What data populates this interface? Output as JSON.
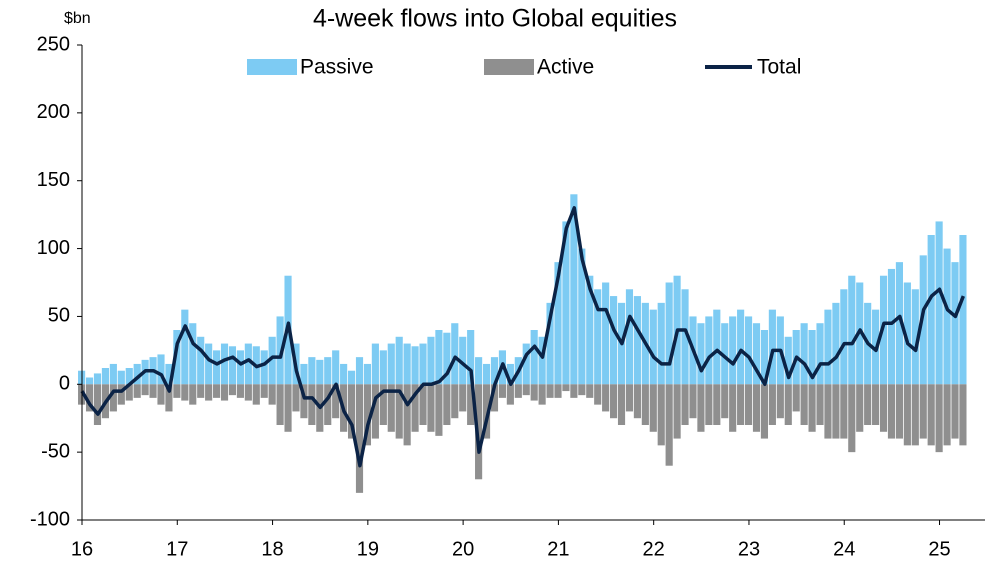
{
  "chart_data": {
    "type": "bar",
    "title": "4-week flows into Global equities",
    "y_axis_label": "$bn",
    "categories": [
      "16",
      null,
      null,
      null,
      null,
      null,
      null,
      null,
      null,
      null,
      null,
      null,
      "17",
      null,
      null,
      null,
      null,
      null,
      null,
      null,
      null,
      null,
      null,
      null,
      "18",
      null,
      null,
      null,
      null,
      null,
      null,
      null,
      null,
      null,
      null,
      null,
      "19",
      null,
      null,
      null,
      null,
      null,
      null,
      null,
      null,
      null,
      null,
      null,
      "20",
      null,
      null,
      null,
      null,
      null,
      null,
      null,
      null,
      null,
      null,
      null,
      "21",
      null,
      null,
      null,
      null,
      null,
      null,
      null,
      null,
      null,
      null,
      null,
      "22",
      null,
      null,
      null,
      null,
      null,
      null,
      null,
      null,
      null,
      null,
      null,
      "23",
      null,
      null,
      null,
      null,
      null,
      null,
      null,
      null,
      null,
      null,
      null,
      "24",
      null,
      null,
      null,
      null,
      null,
      null,
      null,
      null,
      null,
      null,
      null,
      "25",
      null,
      null,
      null
    ],
    "series": [
      {
        "name": "Passive",
        "color": "#7dcbf3",
        "kind": "bar",
        "values": [
          10,
          5,
          8,
          12,
          15,
          10,
          12,
          15,
          18,
          20,
          22,
          15,
          40,
          55,
          45,
          35,
          30,
          25,
          30,
          28,
          25,
          30,
          28,
          25,
          35,
          50,
          80,
          30,
          15,
          20,
          18,
          20,
          25,
          15,
          10,
          20,
          15,
          30,
          25,
          30,
          35,
          30,
          28,
          30,
          35,
          40,
          38,
          45,
          35,
          40,
          20,
          15,
          20,
          25,
          15,
          20,
          30,
          40,
          35,
          60,
          90,
          120,
          140,
          100,
          80,
          70,
          75,
          65,
          60,
          70,
          65,
          60,
          55,
          60,
          75,
          80,
          70,
          50,
          45,
          50,
          55,
          45,
          50,
          55,
          50,
          45,
          40,
          55,
          50,
          35,
          40,
          45,
          40,
          45,
          55,
          60,
          70,
          80,
          75,
          60,
          55,
          80,
          85,
          90,
          75,
          70,
          95,
          110,
          120,
          100,
          90,
          110
        ]
      },
      {
        "name": "Active",
        "color": "#8f8f8f",
        "kind": "bar",
        "values": [
          -15,
          -20,
          -30,
          -25,
          -20,
          -15,
          -12,
          -10,
          -8,
          -10,
          -15,
          -20,
          -10,
          -12,
          -15,
          -10,
          -12,
          -10,
          -12,
          -8,
          -10,
          -12,
          -15,
          -10,
          -15,
          -30,
          -35,
          -20,
          -25,
          -30,
          -35,
          -30,
          -25,
          -35,
          -40,
          -80,
          -45,
          -40,
          -30,
          -35,
          -40,
          -45,
          -35,
          -30,
          -35,
          -38,
          -30,
          -25,
          -20,
          -30,
          -70,
          -40,
          -20,
          -10,
          -15,
          -10,
          -8,
          -12,
          -15,
          -10,
          -10,
          -5,
          -10,
          -8,
          -10,
          -15,
          -20,
          -25,
          -30,
          -20,
          -25,
          -30,
          -35,
          -45,
          -60,
          -40,
          -30,
          -25,
          -35,
          -30,
          -30,
          -25,
          -35,
          -30,
          -30,
          -35,
          -40,
          -30,
          -25,
          -30,
          -20,
          -30,
          -35,
          -30,
          -40,
          -40,
          -40,
          -50,
          -35,
          -30,
          -30,
          -35,
          -40,
          -40,
          -45,
          -45,
          -40,
          -45,
          -50,
          -45,
          -40,
          -45
        ]
      },
      {
        "name": "Total",
        "color": "#0b2346",
        "kind": "line",
        "values": [
          -5,
          -15,
          -22,
          -13,
          -5,
          -5,
          0,
          5,
          10,
          10,
          7,
          -5,
          30,
          43,
          30,
          25,
          18,
          15,
          18,
          20,
          15,
          18,
          13,
          15,
          20,
          20,
          45,
          10,
          -10,
          -10,
          -17,
          -10,
          0,
          -20,
          -30,
          -60,
          -30,
          -10,
          -5,
          -5,
          -5,
          -15,
          -7,
          0,
          0,
          2,
          8,
          20,
          15,
          10,
          -50,
          -25,
          0,
          15,
          0,
          10,
          22,
          28,
          20,
          50,
          80,
          115,
          130,
          92,
          70,
          55,
          55,
          40,
          30,
          50,
          40,
          30,
          20,
          15,
          15,
          40,
          40,
          25,
          10,
          20,
          25,
          20,
          15,
          25,
          20,
          10,
          0,
          25,
          25,
          5,
          20,
          15,
          5,
          15,
          15,
          20,
          30,
          30,
          40,
          30,
          25,
          45,
          45,
          50,
          30,
          25,
          55,
          65,
          70,
          55,
          50,
          65
        ]
      }
    ],
    "ylim": [
      -100,
      250
    ],
    "yticks": [
      -100,
      -50,
      0,
      50,
      100,
      150,
      200,
      250
    ],
    "grid": false
  }
}
